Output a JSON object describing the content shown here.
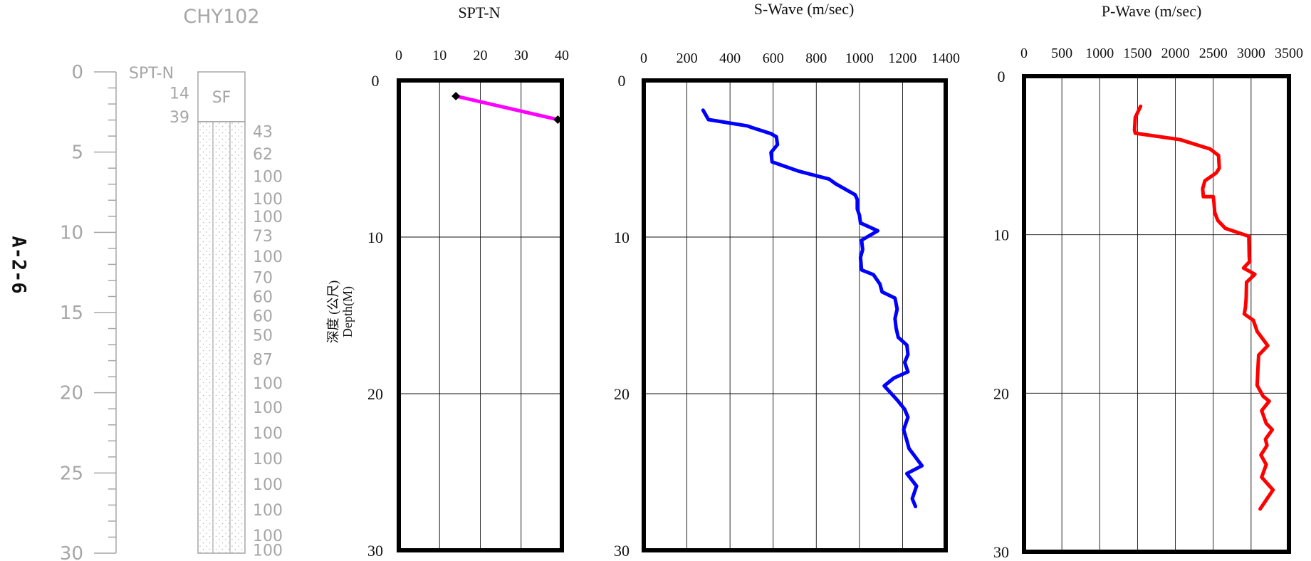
{
  "side_label": "A-2-6",
  "borehole_log": {
    "title": "CHY102",
    "depth_ticks": [
      "0",
      "5",
      "10",
      "15",
      "20",
      "25",
      "30"
    ],
    "spt_header": "SPT-N",
    "spt_left_values": [
      {
        "depth": 1.3,
        "text": "14"
      },
      {
        "depth": 2.8,
        "text": "39"
      }
    ],
    "spt_right_values": [
      {
        "depth": 3.7,
        "text": "43"
      },
      {
        "depth": 5.1,
        "text": "62"
      },
      {
        "depth": 6.5,
        "text": "100"
      },
      {
        "depth": 7.9,
        "text": "100"
      },
      {
        "depth": 9.0,
        "text": "100"
      },
      {
        "depth": 10.2,
        "text": "73"
      },
      {
        "depth": 11.5,
        "text": "100"
      },
      {
        "depth": 12.8,
        "text": "70"
      },
      {
        "depth": 14.0,
        "text": "60"
      },
      {
        "depth": 15.2,
        "text": "60"
      },
      {
        "depth": 16.4,
        "text": "50"
      },
      {
        "depth": 17.9,
        "text": "87"
      },
      {
        "depth": 19.4,
        "text": "100"
      },
      {
        "depth": 20.9,
        "text": "100"
      },
      {
        "depth": 22.5,
        "text": "100"
      },
      {
        "depth": 24.1,
        "text": "100"
      },
      {
        "depth": 25.7,
        "text": "100"
      },
      {
        "depth": 27.3,
        "text": "100"
      },
      {
        "depth": 28.9,
        "text": "100"
      },
      {
        "depth": 29.8,
        "text": "100"
      }
    ],
    "layers": [
      {
        "label": "SF",
        "top": 0,
        "bottom": 3.1
      },
      {
        "label": "",
        "top": 3.1,
        "bottom": 30
      }
    ]
  },
  "y_axis_label": {
    "line1": "深度 (公尺)",
    "line2": "Depth(M)"
  },
  "chart_data": [
    {
      "type": "line",
      "title": "SPT-N",
      "xlim": [
        0,
        40
      ],
      "xticks": [
        0,
        10,
        20,
        30,
        40
      ],
      "ylim": [
        0,
        30
      ],
      "yticks": [
        0,
        10,
        20,
        30
      ],
      "y_inverted": true,
      "grid": true,
      "color": "#ff00ff",
      "markers": true,
      "x": [
        14,
        39
      ],
      "y": [
        1,
        2.5
      ]
    },
    {
      "type": "line",
      "title": "S-Wave (m/sec)",
      "xlim": [
        0,
        1400
      ],
      "xticks": [
        0,
        200,
        400,
        600,
        800,
        1000,
        1200,
        1400
      ],
      "ylim": [
        0,
        30
      ],
      "yticks": [
        0,
        10,
        20,
        30
      ],
      "y_inverted": true,
      "grid": true,
      "color": "#0000ff",
      "markers": false,
      "x": [
        275,
        300,
        480,
        500,
        590,
        615,
        620,
        590,
        595,
        720,
        860,
        890,
        980,
        990,
        990,
        1000,
        1005,
        1085,
        1010,
        1015,
        1005,
        1010,
        1065,
        1095,
        1105,
        1165,
        1175,
        1165,
        1170,
        1180,
        1220,
        1225,
        1210,
        1225,
        1160,
        1115,
        1175,
        1210,
        1225,
        1205,
        1220,
        1230,
        1290,
        1220,
        1265,
        1245,
        1260
      ],
      "y": [
        1.9,
        2.5,
        2.9,
        3.0,
        3.4,
        3.6,
        4.1,
        4.6,
        5.2,
        5.8,
        6.3,
        6.6,
        7.3,
        7.6,
        8.2,
        8.6,
        9.1,
        9.6,
        10.2,
        10.8,
        11.3,
        12.1,
        12.4,
        13.0,
        13.5,
        13.9,
        14.6,
        15.2,
        15.8,
        16.4,
        16.9,
        17.5,
        18.0,
        18.6,
        19.0,
        19.5,
        20.4,
        21.0,
        21.5,
        22.3,
        23.0,
        23.5,
        24.6,
        25.1,
        25.9,
        26.7,
        27.2
      ]
    },
    {
      "type": "line",
      "title": "P-Wave (m/sec)",
      "xlim": [
        0,
        3500
      ],
      "xticks": [
        0,
        500,
        1000,
        1500,
        2000,
        2500,
        3000,
        3500
      ],
      "ylim": [
        0,
        30
      ],
      "yticks": [
        0,
        10,
        20,
        30
      ],
      "y_inverted": true,
      "grid": true,
      "color": "#ff0000",
      "markers": false,
      "x": [
        1540,
        1470,
        1460,
        1470,
        2060,
        2460,
        2570,
        2580,
        2540,
        2390,
        2360,
        2370,
        2500,
        2510,
        2520,
        2560,
        2660,
        2970,
        2975,
        2980,
        2900,
        3050,
        2940,
        2935,
        2925,
        2910,
        3030,
        3080,
        3220,
        3100,
        3090,
        3080,
        3160,
        3240,
        3140,
        3200,
        3280,
        3190,
        3210,
        3130,
        3200,
        3140,
        3290,
        3120
      ],
      "y": [
        1.9,
        2.6,
        3.4,
        3.6,
        4.0,
        4.6,
        5.0,
        5.8,
        6.1,
        6.6,
        7.1,
        7.6,
        7.6,
        8.0,
        8.6,
        9.1,
        9.6,
        10.1,
        11.3,
        11.7,
        12.1,
        12.5,
        13.0,
        14.0,
        14.6,
        15.0,
        15.4,
        16.1,
        17.0,
        17.6,
        18.5,
        19.5,
        20.2,
        20.5,
        21.1,
        21.9,
        22.3,
        22.9,
        23.3,
        23.9,
        24.5,
        25.3,
        26.1,
        27.3
      ]
    }
  ]
}
